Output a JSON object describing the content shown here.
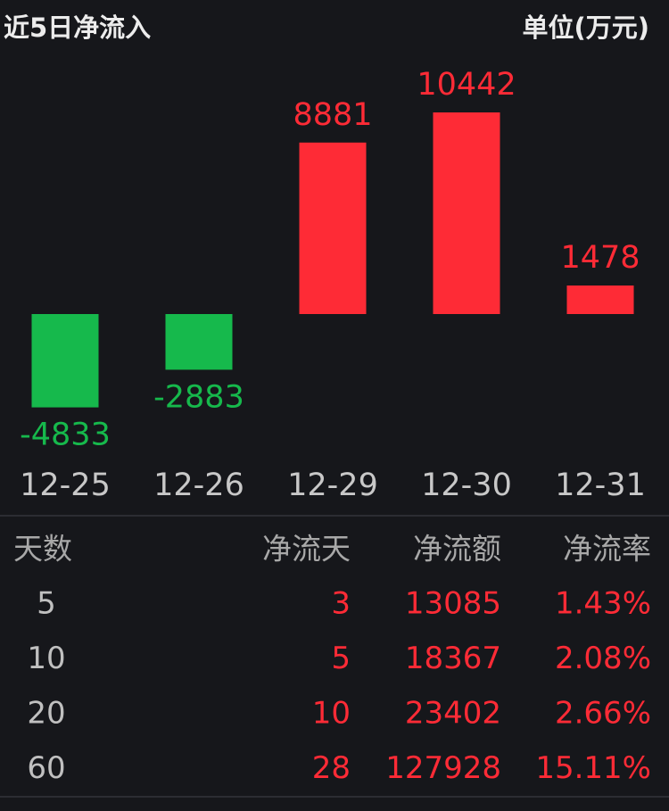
{
  "chart_data": {
    "type": "bar",
    "title": "近5日净流入",
    "unit": "单位(万元)",
    "categories": [
      "12-25",
      "12-26",
      "12-29",
      "12-30",
      "12-31"
    ],
    "values": [
      -4833,
      -2883,
      8881,
      10442,
      1478
    ],
    "positive_color": "#fe2b36",
    "negative_color": "#16b94c"
  },
  "table": {
    "header": [
      "天数",
      "净流天",
      "净流额",
      "净流率"
    ],
    "rows": [
      [
        "5",
        "3",
        "13085",
        "1.43%"
      ],
      [
        "10",
        "5",
        "18367",
        "2.08%"
      ],
      [
        "20",
        "10",
        "23402",
        "2.66%"
      ],
      [
        "60",
        "28",
        "127928",
        "15.11%"
      ]
    ]
  }
}
